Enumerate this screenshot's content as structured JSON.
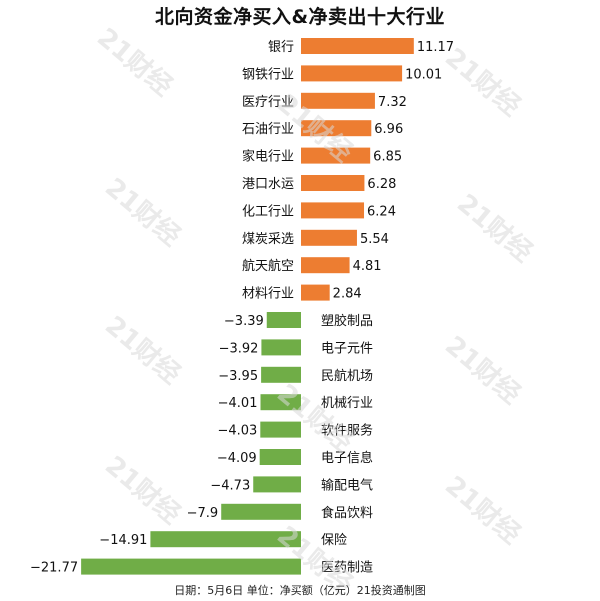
{
  "chart_data": {
    "type": "bar",
    "orientation": "horizontal",
    "title": "北向资金净买入&净卖出十大行业",
    "categories": [
      "银行",
      "钢铁行业",
      "医疗行业",
      "石油行业",
      "家电行业",
      "港口水运",
      "化工行业",
      "煤炭采选",
      "航天航空",
      "材料行业",
      "塑胶制品",
      "电子元件",
      "民航机场",
      "机械行业",
      "软件服务",
      "电子信息",
      "输配电气",
      "食品饮料",
      "保险",
      "医药制造"
    ],
    "values": [
      11.17,
      10.01,
      7.32,
      6.96,
      6.85,
      6.28,
      6.24,
      5.54,
      4.81,
      2.84,
      -3.39,
      -3.92,
      -3.95,
      -4.01,
      -4.03,
      -4.09,
      -4.73,
      -7.9,
      -14.91,
      -21.77
    ],
    "value_labels": [
      "11.17",
      "10.01",
      "7.32",
      "6.96",
      "6.85",
      "6.28",
      "6.24",
      "5.54",
      "4.81",
      "2.84",
      "−3.39",
      "−3.92",
      "−3.95",
      "−4.01",
      "−4.03",
      "−4.09",
      "−4.73",
      "−7.9",
      "−14.91",
      "−21.77"
    ],
    "xlabel": "",
    "ylabel": "",
    "colors": {
      "positive": "#ED7D31",
      "negative": "#70AD47"
    },
    "grid": false,
    "legend": "none"
  },
  "footer": "日期：5月6日 单位：净买额（亿元）21投资通制图",
  "watermark": "21财经"
}
